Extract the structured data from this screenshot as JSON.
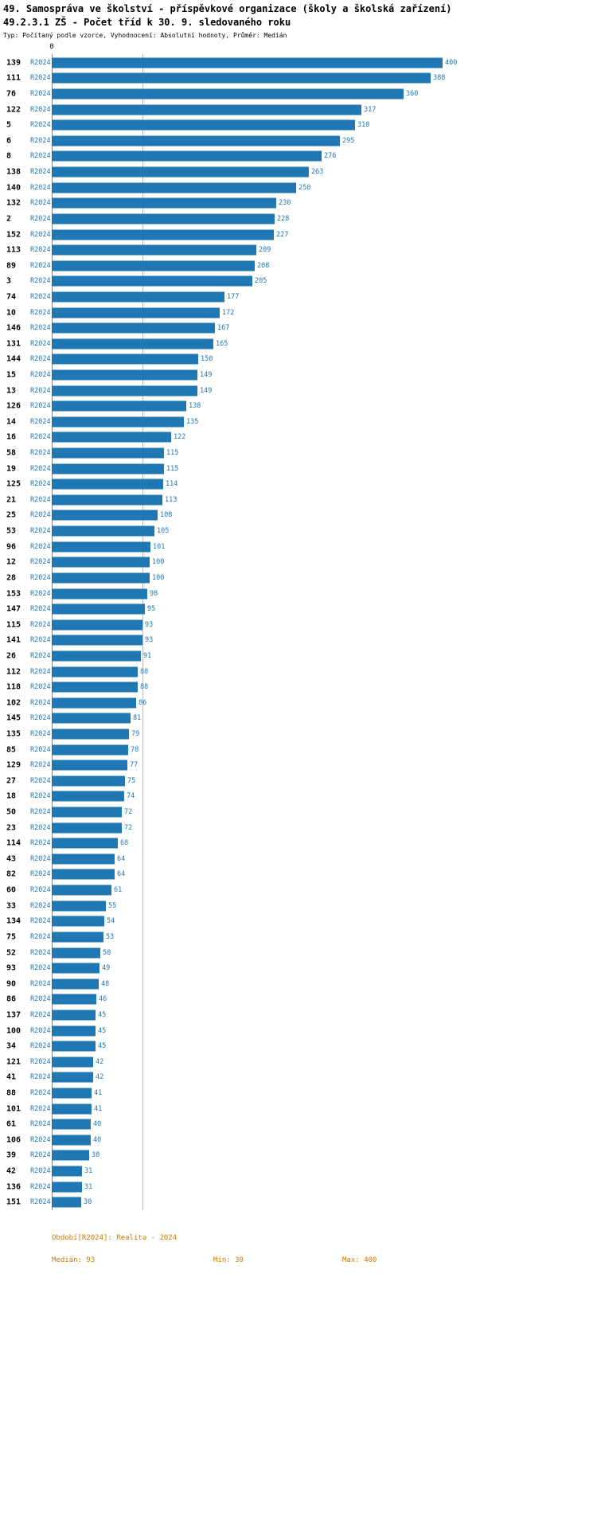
{
  "title_line1": "49. Samospráva ve školství - příspěvkové organizace (školy a školská zařízení)",
  "title_line2": "49.2.3.1 ZŠ - Počet tříd k 30. 9. sledovaného roku",
  "subtitle": "Typ: Počítaný podle vzorce, Vyhodnocení: Absolutní hodnoty, Průměr: Medián",
  "axis": {
    "zero_label": "0"
  },
  "footer": {
    "period": "Období[R2024]: Realita - 2024",
    "median": "Medián: 93",
    "min": "Min: 30",
    "max": "Max: 400"
  },
  "colors": {
    "bar": "#1f77b4",
    "label_blue": "#1f77b4",
    "footer_orange": "#cc7a00",
    "median_line": "#a8bfd0",
    "axis_line": "#7f7f7f"
  },
  "chart_data": {
    "type": "bar",
    "orientation": "horizontal",
    "title": "49.2.3.1 ZŠ - Počet tříd k 30. 9. sledovaného roku",
    "xlabel": "",
    "ylabel": "",
    "xlim": [
      0,
      400
    ],
    "grid": "median-line-only",
    "legend_position": "none",
    "median": 93,
    "min": 30,
    "max": 400,
    "categories": [
      "139",
      "111",
      "76",
      "122",
      "5",
      "6",
      "8",
      "138",
      "140",
      "132",
      "2",
      "152",
      "113",
      "89",
      "3",
      "74",
      "10",
      "146",
      "131",
      "144",
      "15",
      "13",
      "126",
      "14",
      "16",
      "58",
      "19",
      "125",
      "21",
      "25",
      "53",
      "96",
      "12",
      "28",
      "153",
      "147",
      "115",
      "141",
      "26",
      "112",
      "118",
      "102",
      "145",
      "135",
      "85",
      "129",
      "27",
      "18",
      "50",
      "23",
      "114",
      "43",
      "82",
      "60",
      "33",
      "134",
      "75",
      "52",
      "93",
      "90",
      "86",
      "137",
      "100",
      "34",
      "121",
      "41",
      "88",
      "101",
      "61",
      "106",
      "39",
      "42",
      "136",
      "151"
    ],
    "series": [
      {
        "name": "R2024",
        "values": [
          400,
          388,
          360,
          317,
          310,
          295,
          276,
          263,
          250,
          230,
          228,
          227,
          209,
          208,
          205,
          177,
          172,
          167,
          165,
          150,
          149,
          149,
          138,
          135,
          122,
          115,
          115,
          114,
          113,
          108,
          105,
          101,
          100,
          100,
          98,
          95,
          93,
          93,
          91,
          88,
          88,
          86,
          81,
          79,
          78,
          77,
          75,
          74,
          72,
          72,
          68,
          64,
          64,
          61,
          55,
          54,
          53,
          50,
          49,
          48,
          46,
          45,
          45,
          45,
          42,
          42,
          41,
          41,
          40,
          40,
          38,
          31,
          31,
          30
        ]
      }
    ]
  }
}
